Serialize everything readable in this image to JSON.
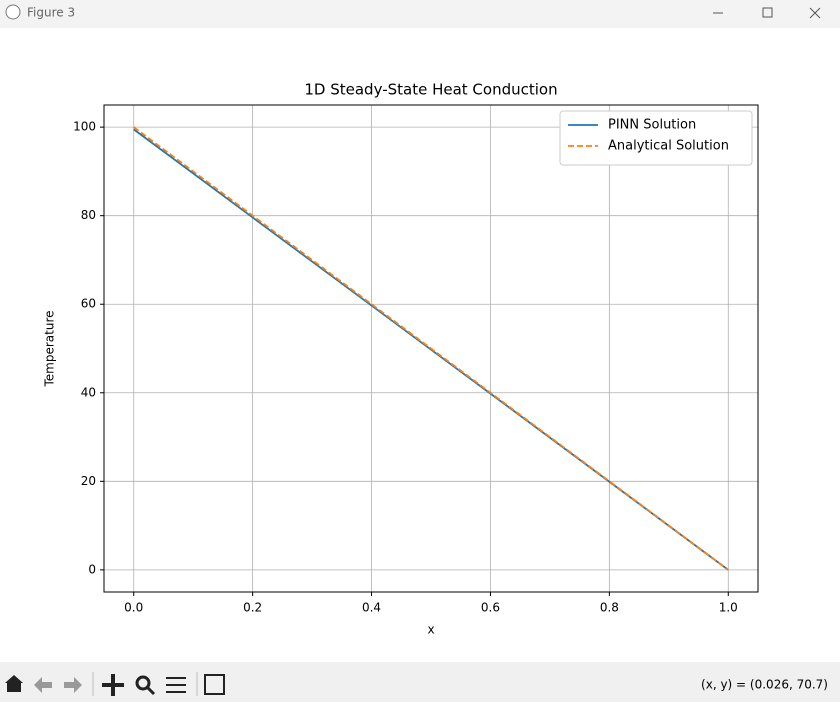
{
  "window": {
    "title": "Figure 3"
  },
  "chart_data": {
    "type": "line",
    "title": "1D Steady-State Heat Conduction",
    "x_label": "x",
    "y_label": "Temperature",
    "x": [
      0,
      0.2,
      0.4,
      0.6,
      0.8,
      1.0
    ],
    "series": [
      {
        "name": "PINN Solution",
        "color": "#1f77b4",
        "dashed": false,
        "values": [
          99.5,
          79.6,
          59.7,
          39.8,
          19.9,
          0
        ]
      },
      {
        "name": "Analytical Solution",
        "color": "#ff7f0e",
        "dashed": true,
        "values": [
          100,
          80,
          60,
          40,
          20,
          0
        ]
      }
    ],
    "xlim": [
      -0.05,
      1.05
    ],
    "ylim": [
      -5,
      105
    ],
    "xticks": [
      {
        "value": 0,
        "label": "0.0"
      },
      {
        "value": 0.2,
        "label": "0.2"
      },
      {
        "value": 0.4,
        "label": "0.4"
      },
      {
        "value": 0.6,
        "label": "0.6"
      },
      {
        "value": 0.8,
        "label": "0.8"
      },
      {
        "value": 1,
        "label": "1.0"
      }
    ],
    "yticks": [
      0,
      20,
      40,
      60,
      80,
      100
    ],
    "grid": true,
    "legend": "upper-right"
  },
  "status": "(x, y) = (0.026, 70.7)"
}
